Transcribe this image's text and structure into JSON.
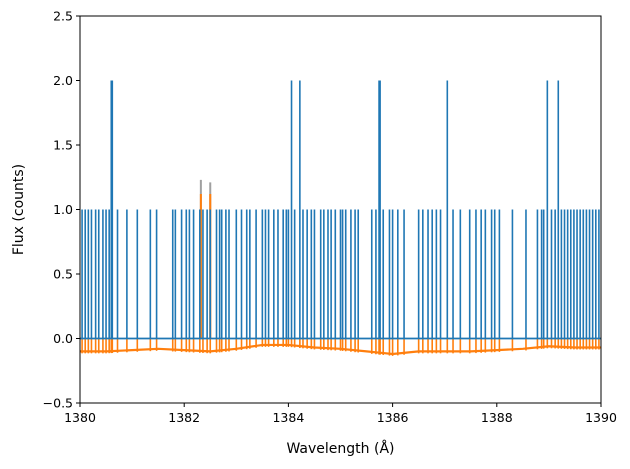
{
  "chart_data": {
    "type": "line",
    "xlabel": "Wavelength (Å)",
    "ylabel": "Flux (counts)",
    "xlim": [
      1380,
      1390
    ],
    "ylim": [
      -0.5,
      2.5
    ],
    "xticks": [
      1380,
      1382,
      1384,
      1386,
      1388,
      1390
    ],
    "yticks": [
      -0.5,
      0.0,
      0.5,
      1.0,
      1.5,
      2.0,
      2.5
    ],
    "xtick_labels": [
      "1380",
      "1382",
      "1384",
      "1386",
      "1388",
      "1390"
    ],
    "ytick_labels": [
      "−0.5",
      "0.0",
      "0.5",
      "1.0",
      "1.5",
      "2.0",
      "2.5"
    ],
    "grid": false,
    "colors": {
      "blue": "#1f77b4",
      "orange": "#ff7f0e",
      "gray": "#a0a0a0"
    },
    "series": [
      {
        "color": "#1f77b4",
        "baseline": 0.0,
        "spikes": [
          [
            1380.04,
            1.0
          ],
          [
            1380.1,
            1.0
          ],
          [
            1380.16,
            1.0
          ],
          [
            1380.22,
            1.0
          ],
          [
            1380.3,
            1.0
          ],
          [
            1380.36,
            1.0
          ],
          [
            1380.44,
            1.0
          ],
          [
            1380.5,
            1.0
          ],
          [
            1380.56,
            1.0
          ],
          [
            1380.6,
            2.0
          ],
          [
            1380.62,
            2.0
          ],
          [
            1380.72,
            1.0
          ],
          [
            1380.9,
            1.0
          ],
          [
            1381.1,
            1.0
          ],
          [
            1381.35,
            1.0
          ],
          [
            1381.47,
            1.0
          ],
          [
            1381.78,
            1.0
          ],
          [
            1381.83,
            1.0
          ],
          [
            1381.95,
            1.0
          ],
          [
            1382.04,
            1.0
          ],
          [
            1382.1,
            1.0
          ],
          [
            1382.18,
            1.0
          ],
          [
            1382.3,
            1.0
          ],
          [
            1382.36,
            1.0
          ],
          [
            1382.44,
            1.0
          ],
          [
            1382.5,
            1.0
          ],
          [
            1382.62,
            1.0
          ],
          [
            1382.68,
            1.0
          ],
          [
            1382.72,
            1.0
          ],
          [
            1382.8,
            1.0
          ],
          [
            1382.86,
            1.0
          ],
          [
            1383.0,
            1.0
          ],
          [
            1383.1,
            1.0
          ],
          [
            1383.2,
            1.0
          ],
          [
            1383.26,
            1.0
          ],
          [
            1383.38,
            1.0
          ],
          [
            1383.5,
            1.0
          ],
          [
            1383.56,
            1.0
          ],
          [
            1383.62,
            1.0
          ],
          [
            1383.72,
            1.0
          ],
          [
            1383.8,
            1.0
          ],
          [
            1383.9,
            1.0
          ],
          [
            1383.96,
            1.0
          ],
          [
            1384.0,
            1.0
          ],
          [
            1384.06,
            2.0
          ],
          [
            1384.12,
            1.0
          ],
          [
            1384.22,
            2.0
          ],
          [
            1384.28,
            1.0
          ],
          [
            1384.36,
            1.0
          ],
          [
            1384.44,
            1.0
          ],
          [
            1384.5,
            1.0
          ],
          [
            1384.62,
            1.0
          ],
          [
            1384.68,
            1.0
          ],
          [
            1384.76,
            1.0
          ],
          [
            1384.82,
            1.0
          ],
          [
            1384.9,
            1.0
          ],
          [
            1385.0,
            1.0
          ],
          [
            1385.04,
            1.0
          ],
          [
            1385.1,
            1.0
          ],
          [
            1385.2,
            1.0
          ],
          [
            1385.28,
            1.0
          ],
          [
            1385.34,
            1.0
          ],
          [
            1385.6,
            1.0
          ],
          [
            1385.68,
            1.0
          ],
          [
            1385.74,
            2.0
          ],
          [
            1385.76,
            2.0
          ],
          [
            1385.82,
            1.0
          ],
          [
            1385.94,
            1.0
          ],
          [
            1386.0,
            1.0
          ],
          [
            1386.1,
            1.0
          ],
          [
            1386.22,
            1.0
          ],
          [
            1386.5,
            1.0
          ],
          [
            1386.58,
            1.0
          ],
          [
            1386.68,
            1.0
          ],
          [
            1386.76,
            1.0
          ],
          [
            1386.84,
            1.0
          ],
          [
            1386.92,
            1.0
          ],
          [
            1387.05,
            2.0
          ],
          [
            1387.16,
            1.0
          ],
          [
            1387.3,
            1.0
          ],
          [
            1387.48,
            1.0
          ],
          [
            1387.6,
            1.0
          ],
          [
            1387.7,
            1.0
          ],
          [
            1387.78,
            1.0
          ],
          [
            1387.9,
            1.0
          ],
          [
            1387.96,
            1.0
          ],
          [
            1388.05,
            1.0
          ],
          [
            1388.3,
            1.0
          ],
          [
            1388.56,
            1.0
          ],
          [
            1388.78,
            1.0
          ],
          [
            1388.86,
            1.0
          ],
          [
            1388.9,
            1.0
          ],
          [
            1388.97,
            2.0
          ],
          [
            1389.05,
            1.0
          ],
          [
            1389.12,
            1.0
          ],
          [
            1389.18,
            2.0
          ],
          [
            1389.24,
            1.0
          ],
          [
            1389.3,
            1.0
          ],
          [
            1389.36,
            1.0
          ],
          [
            1389.42,
            1.0
          ],
          [
            1389.48,
            1.0
          ],
          [
            1389.54,
            1.0
          ],
          [
            1389.6,
            1.0
          ],
          [
            1389.66,
            1.0
          ],
          [
            1389.72,
            1.0
          ],
          [
            1389.78,
            1.0
          ],
          [
            1389.84,
            1.0
          ],
          [
            1389.9,
            1.0
          ],
          [
            1389.96,
            1.0
          ]
        ]
      },
      {
        "color": "#ff7f0e",
        "baseline_curve": [
          [
            1380.0,
            -0.1
          ],
          [
            1380.5,
            -0.1
          ],
          [
            1381.0,
            -0.09
          ],
          [
            1381.5,
            -0.08
          ],
          [
            1382.0,
            -0.09
          ],
          [
            1382.5,
            -0.1
          ],
          [
            1383.0,
            -0.08
          ],
          [
            1383.5,
            -0.05
          ],
          [
            1384.0,
            -0.05
          ],
          [
            1384.5,
            -0.07
          ],
          [
            1385.0,
            -0.08
          ],
          [
            1385.5,
            -0.1
          ],
          [
            1386.0,
            -0.12
          ],
          [
            1386.5,
            -0.1
          ],
          [
            1387.0,
            -0.1
          ],
          [
            1387.5,
            -0.1
          ],
          [
            1388.0,
            -0.09
          ],
          [
            1388.5,
            -0.08
          ],
          [
            1389.0,
            -0.06
          ],
          [
            1389.5,
            -0.07
          ],
          [
            1390.0,
            -0.07
          ]
        ],
        "peaks": [
          [
            1382.32,
            1.12
          ],
          [
            1382.5,
            1.12
          ]
        ]
      },
      {
        "color": "#a0a0a0",
        "peaks": [
          [
            1382.32,
            1.23
          ],
          [
            1382.5,
            1.21
          ]
        ]
      }
    ]
  }
}
